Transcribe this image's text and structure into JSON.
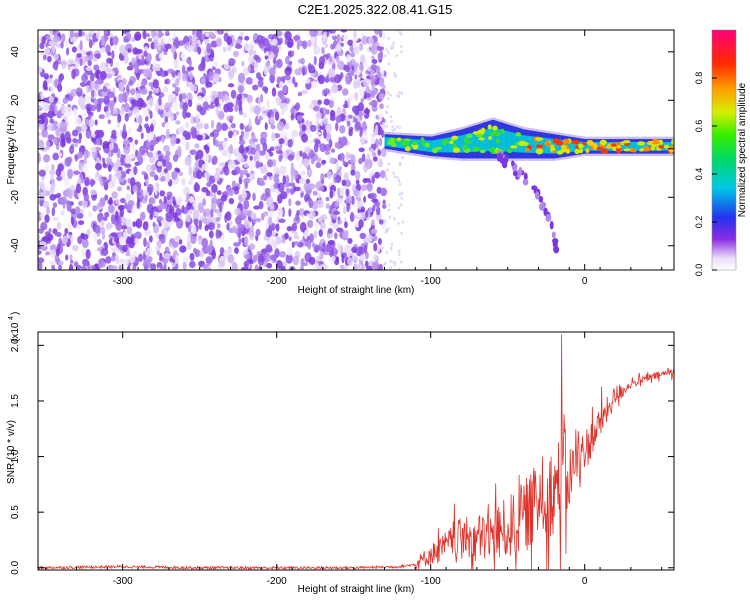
{
  "title": "C2E1.2025.322.08.41.G15",
  "chart_data": [
    {
      "type": "heatmap",
      "title": "C2E1.2025.322.08.41.G15",
      "xlabel": "Height of straight line (km)",
      "ylabel": "Frequency (Hz)",
      "xlim": [
        -355,
        58
      ],
      "ylim": [
        -50,
        49
      ],
      "x_ticks": [
        -300,
        -200,
        -100,
        0
      ],
      "y_ticks": [
        -40,
        -20,
        0,
        20,
        40
      ],
      "colorbar": {
        "label": "Normalized spectral amplitude",
        "range": [
          0.0,
          1.0
        ],
        "ticks": [
          0.0,
          0.2,
          0.4,
          0.6,
          0.8
        ]
      },
      "features": {
        "noise_region_x": [
          -355,
          -130
        ],
        "signal_band": {
          "x": [
            -130,
            -100,
            -80,
            -60,
            -40,
            -20,
            0,
            20,
            40,
            58
          ],
          "center_hz": [
            3,
            1,
            2,
            4,
            2,
            1,
            1,
            1,
            1,
            1
          ],
          "width_hz": [
            3,
            4,
            6,
            8,
            6,
            5,
            3,
            3,
            3,
            3
          ]
        },
        "descending_branch": {
          "x": [
            -60,
            -50,
            -40,
            -30,
            -22,
            -18
          ],
          "freq_hz": [
            -2,
            -6,
            -12,
            -20,
            -32,
            -42
          ]
        }
      }
    },
    {
      "type": "line",
      "xlabel": "Height of straight line (km)",
      "ylabel": "SNR (10 * v/v)",
      "y_multiplier_label": "(x10",
      "y_multiplier_exp": "4",
      "xlim": [
        -355,
        58
      ],
      "ylim": [
        -0.02,
        2.12
      ],
      "x_ticks": [
        -300,
        -200,
        -100,
        0
      ],
      "y_ticks": [
        "0.0",
        "0.5",
        "1.0",
        "1.5",
        "2.0"
      ],
      "series": [
        {
          "name": "SNR",
          "color": "#e0322a",
          "x": [
            -355,
            -300,
            -250,
            -200,
            -150,
            -120,
            -110,
            -100,
            -90,
            -80,
            -70,
            -60,
            -50,
            -40,
            -30,
            -20,
            -15,
            -10,
            -5,
            0,
            10,
            20,
            30,
            40,
            50,
            58
          ],
          "y": [
            0.0,
            0.01,
            0.0,
            0.0,
            0.0,
            0.01,
            0.03,
            0.12,
            0.2,
            0.28,
            0.26,
            0.3,
            0.35,
            0.45,
            0.6,
            0.7,
            0.8,
            0.85,
            0.95,
            1.05,
            1.3,
            1.55,
            1.65,
            1.7,
            1.74,
            1.77
          ],
          "spike_peak": {
            "x": -15,
            "y": 2.1
          }
        }
      ]
    }
  ]
}
